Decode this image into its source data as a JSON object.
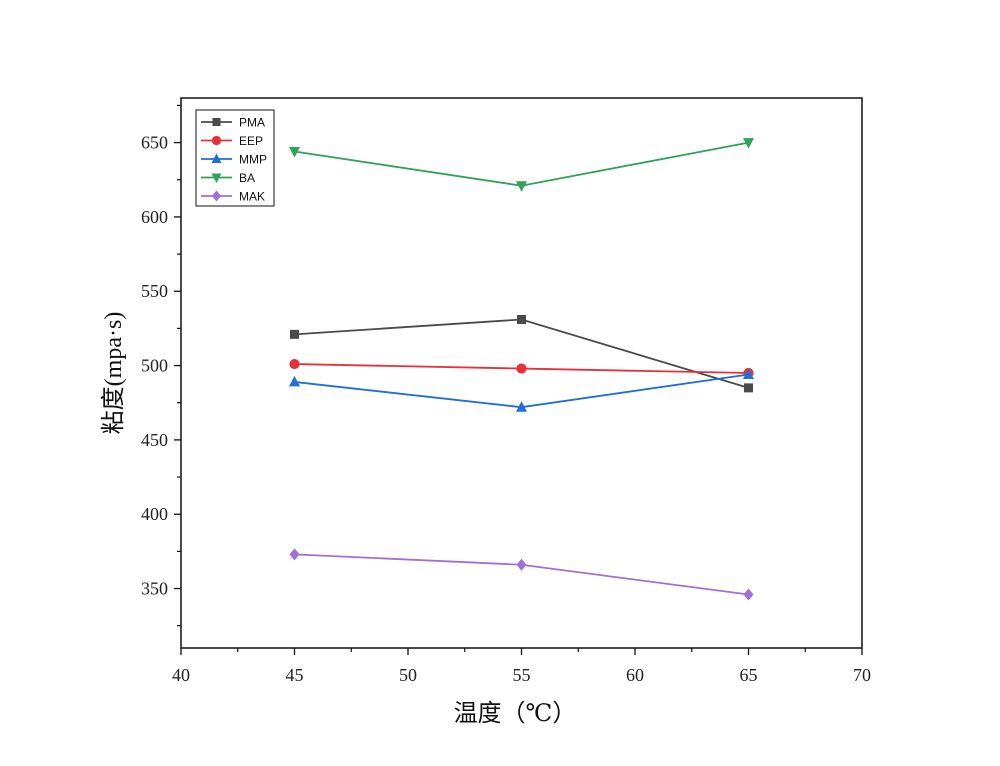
{
  "chart_data": {
    "type": "line",
    "title": "",
    "xlabel": "温度（℃）",
    "ylabel": "粘度(mpa·s)",
    "x": [
      45,
      55,
      65
    ],
    "xlim": [
      40,
      70
    ],
    "ylim": [
      310,
      680
    ],
    "xticks": [
      40,
      45,
      50,
      55,
      60,
      65,
      70
    ],
    "yticks": [
      350,
      400,
      450,
      500,
      550,
      600,
      650
    ],
    "grid": false,
    "legend_position": "top-left",
    "series": [
      {
        "name": "PMA",
        "values": [
          521,
          531,
          485
        ],
        "color": "#4a4a4a",
        "marker": "square"
      },
      {
        "name": "EEP",
        "values": [
          501,
          498,
          495
        ],
        "color": "#e8303a",
        "marker": "circle"
      },
      {
        "name": "MMP",
        "values": [
          489,
          472,
          494
        ],
        "color": "#1f6fd6",
        "marker": "triangle-up"
      },
      {
        "name": "BA",
        "values": [
          644,
          621,
          650
        ],
        "color": "#2fa35a",
        "marker": "triangle-down"
      },
      {
        "name": "MAK",
        "values": [
          373,
          366,
          346
        ],
        "color": "#a26ed8",
        "marker": "diamond"
      }
    ]
  }
}
